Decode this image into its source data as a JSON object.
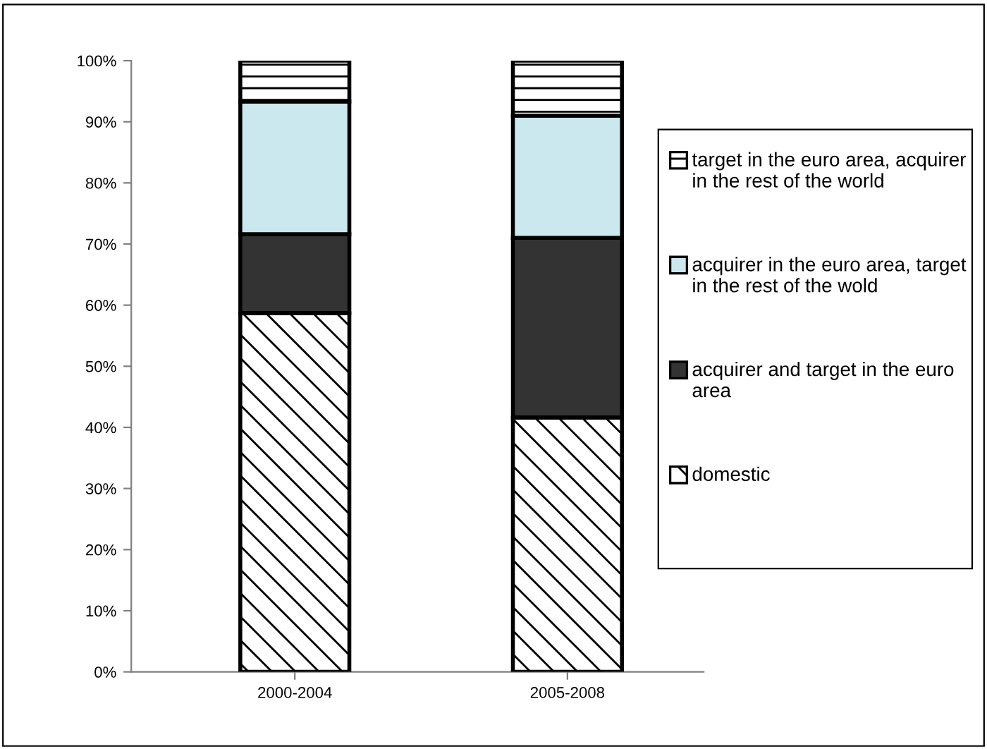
{
  "chart_data": {
    "type": "bar",
    "stacked": true,
    "categories": [
      "2000-2004",
      "2005-2008"
    ],
    "series": [
      {
        "name": "domestic",
        "color": "#ffffff",
        "values": [
          58.7,
          41.6
        ]
      },
      {
        "name": "acquirer and target in the euro area",
        "color": "#333333",
        "values": [
          12.9,
          29.4
        ]
      },
      {
        "name": "acquirer in the euro area, target in the rest of the wold",
        "color": "#cce8ef",
        "values": [
          21.7,
          20.0
        ]
      },
      {
        "name": "target in the euro area, acquirer in the rest of the world",
        "color": "#ffffff",
        "values": [
          6.7,
          9.0
        ]
      }
    ],
    "ylim": [
      0,
      100
    ],
    "yticks": [
      {
        "value": 0,
        "label": "0%"
      },
      {
        "value": 10,
        "label": "10%"
      },
      {
        "value": 20,
        "label": "20%"
      },
      {
        "value": 30,
        "label": "30%"
      },
      {
        "value": 40,
        "label": "40%"
      },
      {
        "value": 50,
        "label": "50%"
      },
      {
        "value": 60,
        "label": "60%"
      },
      {
        "value": 70,
        "label": "70%"
      },
      {
        "value": 80,
        "label": "80%"
      },
      {
        "value": 90,
        "label": "90%"
      },
      {
        "value": 100,
        "label": "100%"
      }
    ],
    "grid": false,
    "legend": "right"
  }
}
